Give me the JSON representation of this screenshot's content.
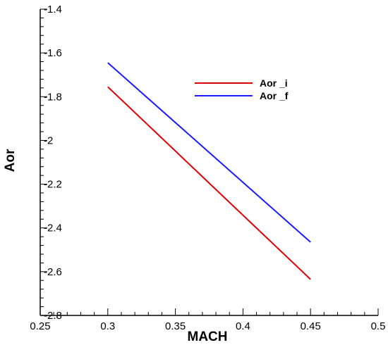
{
  "chart_data": {
    "type": "line",
    "title": "",
    "xlabel": "MACH",
    "ylabel": "Aor",
    "xlim": [
      0.25,
      0.5
    ],
    "ylim": [
      -2.8,
      -1.4
    ],
    "x_ticks": [
      0.25,
      0.3,
      0.35,
      0.4,
      0.45,
      0.5
    ],
    "x_tick_labels": [
      "0.25",
      "0.3",
      "0.35",
      "0.4",
      "0.45",
      "0.5"
    ],
    "y_ticks": [
      -1.4,
      -1.6,
      -1.8,
      -2.0,
      -2.2,
      -2.4,
      -2.6,
      -2.8
    ],
    "y_tick_labels": [
      "-1.4",
      "-1.6",
      "-1.8",
      "-2",
      "-2.2",
      "-2.4",
      "-2.6",
      "-2.8"
    ],
    "grid": false,
    "legend_position": "top-right",
    "series": [
      {
        "name": "Aor _i",
        "color": "#dd0000",
        "x": [
          0.3,
          0.45
        ],
        "y": [
          -1.755,
          -2.635
        ]
      },
      {
        "name": "Aor _f",
        "color": "#1a1aff",
        "x": [
          0.3,
          0.45
        ],
        "y": [
          -1.645,
          -2.465
        ]
      }
    ]
  }
}
